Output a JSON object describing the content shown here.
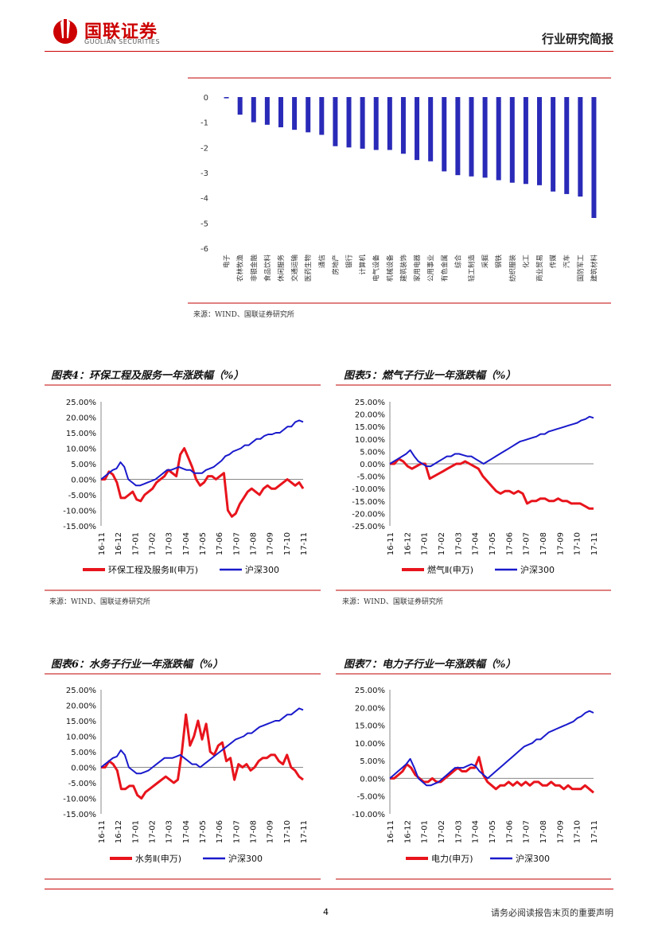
{
  "header": {
    "logo_cn": "国联证券",
    "logo_en": "GUOLIAN SECURITIES",
    "title": "行业研究简报"
  },
  "footer": {
    "page_number": "4",
    "disclaimer": "请务必阅读报告末页的重要声明"
  },
  "colors": {
    "accent": "#c00000",
    "bar": "#2a2ab8",
    "red_line": "#e8141c",
    "blue_line": "#1a1acc"
  },
  "top_chart": {
    "source": "来源：WIND、国联证券研究所"
  },
  "figures": [
    {
      "title": "图表4：环保工程及服务一年涨跌幅（%）",
      "source": "来源：WIND、国联证券研究所"
    },
    {
      "title": "图表5：燃气子行业一年涨跌幅（%）",
      "source": "来源：WIND、国联证券研究所"
    },
    {
      "title": "图表6：水务子行业一年涨跌幅（%）",
      "source": "来源：WIND、国联证券研究所"
    },
    {
      "title": "图表7：电力子行业一年涨跌幅（%）",
      "source": "来源：WIND、国联证券研究所"
    }
  ],
  "chart_data": [
    {
      "type": "bar",
      "categories": [
        "电子",
        "农林牧渔",
        "非银金融",
        "食品饮料",
        "休闲服务",
        "交通运输",
        "医药生物",
        "通信",
        "房地产",
        "银行",
        "计算机",
        "电气设备",
        "机械设备",
        "建筑装饰",
        "家用电器",
        "公用事业",
        "有色金属",
        "综合",
        "轻工制造",
        "采掘",
        "钢铁",
        "纺织服装",
        "化工",
        "商业贸易",
        "传媒",
        "汽车",
        "国防军工",
        "建筑材料"
      ],
      "values": [
        -0.05,
        -0.7,
        -1.0,
        -1.1,
        -1.2,
        -1.3,
        -1.4,
        -1.5,
        -1.95,
        -2.0,
        -2.05,
        -2.1,
        -2.1,
        -2.25,
        -2.5,
        -2.55,
        -2.95,
        -3.1,
        -3.15,
        -3.2,
        -3.3,
        -3.4,
        -3.45,
        -3.5,
        -3.75,
        -3.85,
        -3.95,
        -4.8
      ],
      "yticks": [
        "0",
        "-1",
        "-2",
        "-3",
        "-4",
        "-5",
        "-6"
      ],
      "ylim": [
        -6,
        0
      ]
    },
    {
      "type": "line",
      "x_labels": [
        "16-11",
        "16-12",
        "17-01",
        "17-02",
        "17-03",
        "17-04",
        "17-05",
        "17-06",
        "17-07",
        "17-08",
        "17-09",
        "17-10",
        "17-11"
      ],
      "yticks": [
        "25.00%",
        "20.00%",
        "15.00%",
        "10.00%",
        "5.00%",
        "0.00%",
        "-5.00%",
        "-10.00%",
        "-15.00%"
      ],
      "ylim": [
        -15,
        25
      ],
      "series": [
        {
          "name": "环保工程及服务Ⅱ(申万)",
          "values": [
            0,
            0,
            2.5,
            1.5,
            -1,
            -6,
            -6,
            -5,
            -4,
            -6.5,
            -7,
            -5,
            -4,
            -3,
            -1,
            0,
            1,
            3,
            2,
            1,
            8,
            10,
            7,
            4,
            0,
            -2,
            -1,
            1,
            1,
            0,
            1,
            2,
            -10,
            -12,
            -11,
            -8,
            -6,
            -4,
            -3,
            -4,
            -5,
            -3,
            -2,
            -3,
            -3,
            -2,
            -1,
            0,
            -1,
            -2,
            -1,
            -3
          ]
        },
        {
          "name": "沪深300",
          "values": [
            0,
            1,
            2,
            3,
            3.5,
            5.5,
            4,
            0,
            -1,
            -2,
            -2,
            -1.5,
            -1,
            -0.5,
            0,
            1,
            2,
            3,
            3,
            3.5,
            4,
            3.5,
            3,
            3,
            2,
            2,
            2,
            3,
            3.5,
            4,
            5,
            6,
            7.5,
            8,
            9,
            9.5,
            10,
            11,
            11,
            12,
            13,
            13,
            14,
            14.5,
            14.5,
            15,
            15,
            16,
            17,
            17,
            18.5,
            19,
            18.5
          ]
        }
      ]
    },
    {
      "type": "line",
      "x_labels": [
        "16-11",
        "16-12",
        "17-01",
        "17-02",
        "17-03",
        "17-04",
        "17-05",
        "17-06",
        "17-07",
        "17-08",
        "17-09",
        "17-10",
        "17-11"
      ],
      "yticks": [
        "25.00%",
        "20.00%",
        "15.00%",
        "10.00%",
        "5.00%",
        "0.00%",
        "-5.00%",
        "-10.00%",
        "-15.00%",
        "-20.00%",
        "-25.00%"
      ],
      "ylim": [
        -25,
        25
      ],
      "series": [
        {
          "name": "燃气Ⅱ(申万)",
          "values": [
            0,
            0,
            2,
            1,
            -1,
            -2,
            -1,
            0,
            0,
            -6,
            -5,
            -4,
            -3,
            -2,
            -1,
            0,
            0,
            1,
            0,
            -1,
            -2,
            -5,
            -7,
            -9,
            -11,
            -12,
            -11,
            -11,
            -12,
            -11,
            -12,
            -16,
            -15,
            -15,
            -14,
            -14,
            -15,
            -15,
            -14,
            -15,
            -15,
            -16,
            -16,
            -16,
            -17,
            -18,
            -18
          ]
        },
        {
          "name": "沪深300",
          "values": [
            0,
            1,
            2,
            3,
            4,
            5.5,
            3,
            1,
            0,
            -1,
            -1,
            0,
            1,
            2,
            3,
            3,
            4,
            4,
            3.5,
            3,
            3,
            2,
            1,
            0,
            1,
            2,
            3,
            4,
            5,
            6,
            7,
            8,
            9,
            9.5,
            10,
            10.5,
            11,
            12,
            12,
            13,
            13.5,
            14,
            14.5,
            15,
            15.5,
            16,
            16.5,
            17.5,
            18,
            19,
            18.5
          ]
        }
      ]
    },
    {
      "type": "line",
      "x_labels": [
        "16-11",
        "16-12",
        "17-01",
        "17-02",
        "17-03",
        "17-04",
        "17-05",
        "17-06",
        "17-07",
        "17-08",
        "17-09",
        "17-10",
        "17-11"
      ],
      "yticks": [
        "25.00%",
        "20.00%",
        "15.00%",
        "10.00%",
        "5.00%",
        "0.00%",
        "-5.00%",
        "-10.00%",
        "-15.00%"
      ],
      "ylim": [
        -15,
        25
      ],
      "series": [
        {
          "name": "水务Ⅱ(申万)",
          "values": [
            0,
            0,
            2,
            1,
            -1,
            -7,
            -7,
            -6,
            -6,
            -9,
            -10,
            -8,
            -7,
            -6,
            -5,
            -4,
            -3,
            -4,
            -5,
            -4,
            5,
            17,
            7,
            10,
            15,
            9,
            14,
            5,
            4,
            7,
            8,
            2,
            3,
            -4,
            1,
            0,
            1,
            -1,
            0,
            2,
            3,
            3,
            4,
            4,
            2,
            1,
            4,
            0,
            -1,
            -3,
            -4
          ]
        },
        {
          "name": "沪深300",
          "values": [
            0,
            1,
            2,
            3,
            3.5,
            5.5,
            4,
            0,
            -1,
            -2,
            -2,
            -1.5,
            -1,
            0,
            1,
            2,
            3,
            3,
            3,
            3.5,
            4,
            3,
            2,
            1,
            1,
            0,
            1,
            2,
            3,
            4,
            5,
            6,
            7,
            8,
            9,
            9.5,
            10,
            11,
            11,
            12,
            13,
            13.5,
            14,
            14.5,
            15,
            15,
            16,
            17,
            17,
            18,
            19,
            18.5
          ]
        }
      ]
    },
    {
      "type": "line",
      "x_labels": [
        "16-11",
        "16-12",
        "17-01",
        "17-02",
        "17-03",
        "17-04",
        "17-05",
        "17-06",
        "17-07",
        "17-08",
        "17-09",
        "17-10",
        "17-11"
      ],
      "yticks": [
        "25.00%",
        "20.00%",
        "15.00%",
        "10.00%",
        "5.00%",
        "0.00%",
        "-5.00%",
        "-10.00%"
      ],
      "ylim": [
        -10,
        25
      ],
      "series": [
        {
          "name": "电力(申万)",
          "values": [
            0,
            0,
            1,
            2,
            4,
            3,
            1,
            0,
            -1,
            -1,
            0,
            -1,
            -1,
            0,
            1,
            2,
            3,
            2,
            2,
            3,
            3,
            6,
            1,
            -1,
            -2,
            -3,
            -2,
            -2,
            -1,
            -2,
            -1,
            -2,
            -1,
            -2,
            -1,
            -1,
            -2,
            -2,
            -1,
            -2,
            -2,
            -3,
            -2,
            -3,
            -3,
            -3,
            -2,
            -3,
            -4
          ]
        },
        {
          "name": "沪深300",
          "values": [
            0,
            1,
            2,
            3,
            4,
            5.5,
            3,
            0,
            -1,
            -2,
            -2,
            -1.5,
            -1,
            0,
            1,
            2,
            3,
            3,
            3,
            3.5,
            4,
            3.5,
            2,
            1,
            0,
            1,
            2,
            3,
            4,
            5,
            6,
            7,
            8,
            9,
            9.5,
            10,
            11,
            11,
            12,
            13,
            13.5,
            14,
            14.5,
            15,
            15.5,
            16,
            17,
            17.5,
            18.5,
            19,
            18.5
          ]
        }
      ]
    }
  ]
}
